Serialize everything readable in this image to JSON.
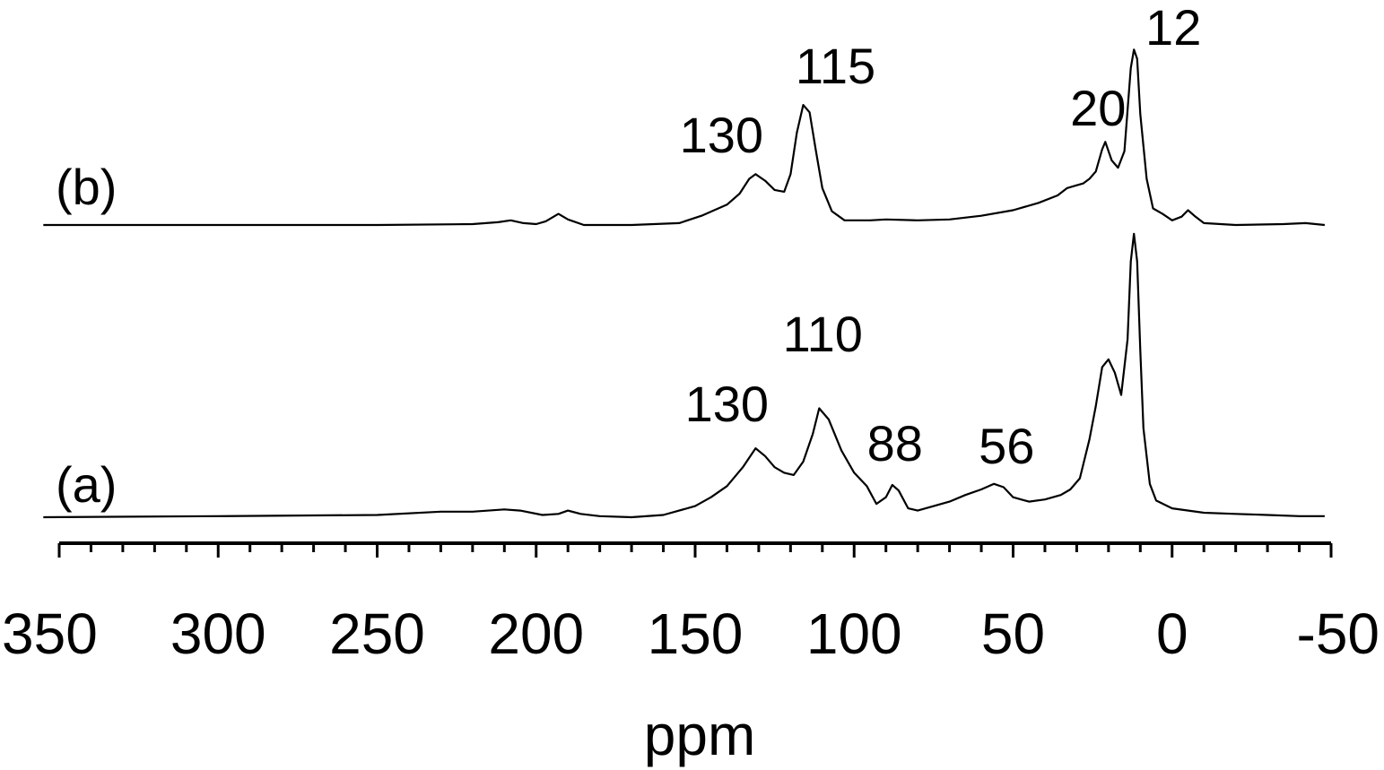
{
  "chart_data": {
    "type": "line",
    "title": "",
    "xlabel": "ppm",
    "ylabel": "",
    "xlim": [
      350,
      -50
    ],
    "x_reversed": true,
    "grid": false,
    "legend": "none",
    "x_ticks": [
      350,
      300,
      250,
      200,
      150,
      100,
      50,
      0,
      -50
    ],
    "x_tick_labels": [
      "350",
      "300",
      "250",
      "200",
      "150",
      "100",
      "50",
      "0",
      "-50"
    ],
    "series": [
      {
        "name": "(a)",
        "points": [
          [
            355,
            0.0
          ],
          [
            300,
            0.01
          ],
          [
            250,
            0.02
          ],
          [
            230,
            0.05
          ],
          [
            220,
            0.05
          ],
          [
            210,
            0.07
          ],
          [
            205,
            0.06
          ],
          [
            198,
            0.02
          ],
          [
            193,
            0.03
          ],
          [
            190,
            0.06
          ],
          [
            186,
            0.03
          ],
          [
            180,
            0.01
          ],
          [
            170,
            0.0
          ],
          [
            160,
            0.02
          ],
          [
            150,
            0.1
          ],
          [
            145,
            0.18
          ],
          [
            140,
            0.28
          ],
          [
            135,
            0.45
          ],
          [
            131,
            0.62
          ],
          [
            128,
            0.55
          ],
          [
            125,
            0.45
          ],
          [
            122,
            0.4
          ],
          [
            119,
            0.38
          ],
          [
            116,
            0.5
          ],
          [
            113,
            0.75
          ],
          [
            111,
            0.98
          ],
          [
            108,
            0.88
          ],
          [
            104,
            0.6
          ],
          [
            100,
            0.4
          ],
          [
            96,
            0.28
          ],
          [
            93,
            0.12
          ],
          [
            90,
            0.18
          ],
          [
            88,
            0.29
          ],
          [
            86,
            0.24
          ],
          [
            83,
            0.08
          ],
          [
            80,
            0.06
          ],
          [
            75,
            0.1
          ],
          [
            70,
            0.14
          ],
          [
            65,
            0.2
          ],
          [
            60,
            0.25
          ],
          [
            56,
            0.3
          ],
          [
            53,
            0.27
          ],
          [
            50,
            0.18
          ],
          [
            45,
            0.14
          ],
          [
            40,
            0.16
          ],
          [
            35,
            0.2
          ],
          [
            32,
            0.25
          ],
          [
            29,
            0.35
          ],
          [
            26,
            0.7
          ],
          [
            24,
            1.0
          ],
          [
            22,
            1.35
          ],
          [
            20,
            1.42
          ],
          [
            18,
            1.3
          ],
          [
            16,
            1.1
          ],
          [
            14,
            1.6
          ],
          [
            13,
            2.3
          ],
          [
            12,
            2.55
          ],
          [
            11,
            2.3
          ],
          [
            10,
            1.5
          ],
          [
            9,
            0.8
          ],
          [
            7,
            0.3
          ],
          [
            5,
            0.15
          ],
          [
            0,
            0.08
          ],
          [
            -10,
            0.04
          ],
          [
            -20,
            0.03
          ],
          [
            -30,
            0.02
          ],
          [
            -40,
            0.01
          ],
          [
            -48,
            0.01
          ]
        ]
      },
      {
        "name": "(b)",
        "points": [
          [
            355,
            0.0
          ],
          [
            300,
            0.0
          ],
          [
            250,
            0.0
          ],
          [
            220,
            0.01
          ],
          [
            212,
            0.03
          ],
          [
            208,
            0.05
          ],
          [
            204,
            0.02
          ],
          [
            200,
            0.01
          ],
          [
            197,
            0.04
          ],
          [
            193,
            0.12
          ],
          [
            190,
            0.06
          ],
          [
            185,
            0.0
          ],
          [
            170,
            0.0
          ],
          [
            155,
            0.02
          ],
          [
            148,
            0.1
          ],
          [
            144,
            0.16
          ],
          [
            140,
            0.22
          ],
          [
            136,
            0.34
          ],
          [
            133,
            0.5
          ],
          [
            131,
            0.55
          ],
          [
            128,
            0.48
          ],
          [
            125,
            0.38
          ],
          [
            122,
            0.36
          ],
          [
            120,
            0.55
          ],
          [
            118,
            1.0
          ],
          [
            116,
            1.3
          ],
          [
            114,
            1.22
          ],
          [
            112,
            0.8
          ],
          [
            110,
            0.4
          ],
          [
            107,
            0.15
          ],
          [
            103,
            0.05
          ],
          [
            95,
            0.05
          ],
          [
            90,
            0.06
          ],
          [
            80,
            0.05
          ],
          [
            70,
            0.06
          ],
          [
            60,
            0.1
          ],
          [
            50,
            0.16
          ],
          [
            42,
            0.24
          ],
          [
            36,
            0.32
          ],
          [
            33,
            0.4
          ],
          [
            30,
            0.43
          ],
          [
            28,
            0.45
          ],
          [
            26,
            0.5
          ],
          [
            24,
            0.58
          ],
          [
            22,
            0.82
          ],
          [
            21,
            0.9
          ],
          [
            19,
            0.7
          ],
          [
            17,
            0.62
          ],
          [
            15,
            0.8
          ],
          [
            13,
            1.7
          ],
          [
            12,
            1.9
          ],
          [
            11,
            1.8
          ],
          [
            10,
            1.2
          ],
          [
            8,
            0.5
          ],
          [
            6,
            0.18
          ],
          [
            3,
            0.12
          ],
          [
            0,
            0.05
          ],
          [
            -3,
            0.09
          ],
          [
            -5,
            0.16
          ],
          [
            -7,
            0.1
          ],
          [
            -10,
            0.02
          ],
          [
            -20,
            0.0
          ],
          [
            -35,
            0.01
          ],
          [
            -42,
            0.02
          ],
          [
            -48,
            0.0
          ]
        ]
      }
    ],
    "annotations": [
      {
        "series": "(a)",
        "text": "130",
        "x": 131
      },
      {
        "series": "(a)",
        "text": "110",
        "x": 111
      },
      {
        "series": "(a)",
        "text": "88",
        "x": 88
      },
      {
        "series": "(a)",
        "text": "56",
        "x": 56
      },
      {
        "series": "(b)",
        "text": "130",
        "x": 131
      },
      {
        "series": "(b)",
        "text": "115",
        "x": 116
      },
      {
        "series": "(b)",
        "text": "20",
        "x": 21
      },
      {
        "series": "(b)",
        "text": "12",
        "x": 12
      }
    ]
  }
}
